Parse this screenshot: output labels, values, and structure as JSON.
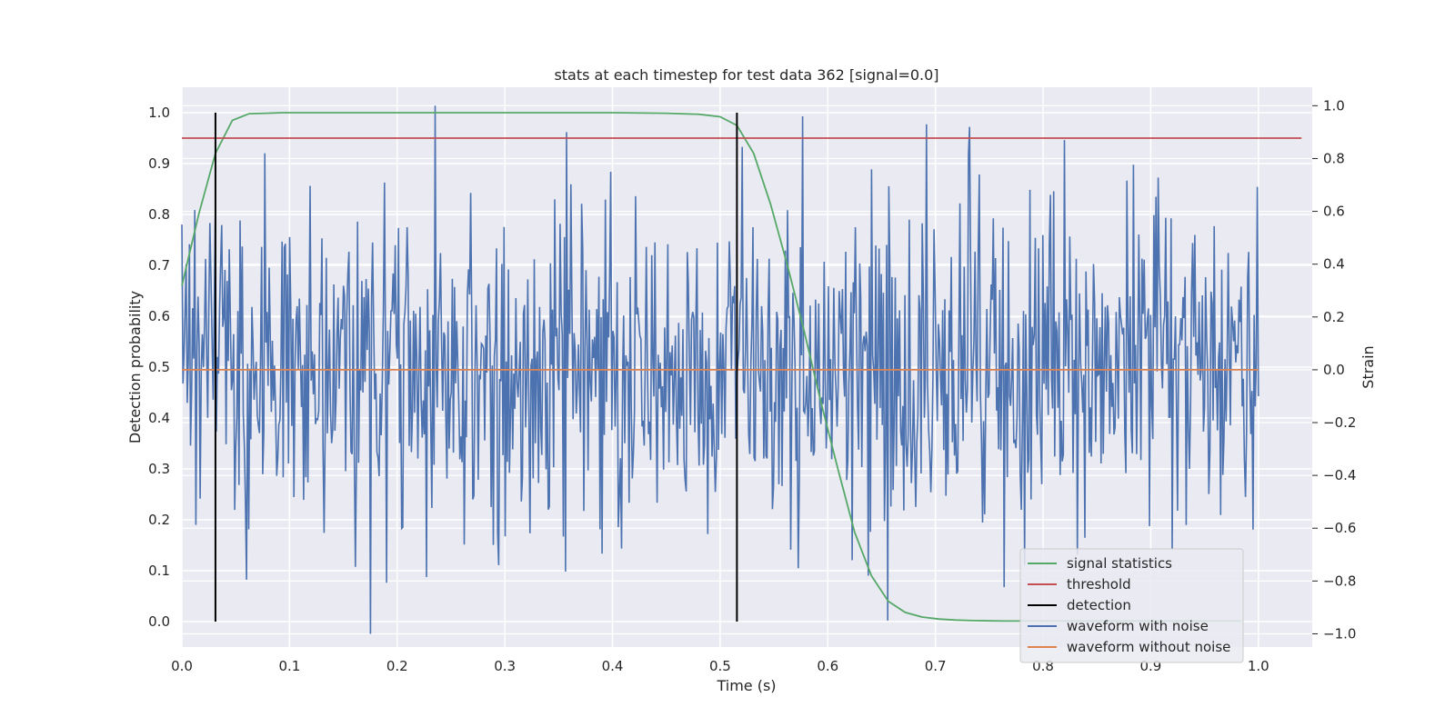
{
  "chart_data": {
    "type": "line",
    "title": "stats at each timestep for test data 362 [signal=0.0]",
    "xlabel": "Time (s)",
    "ylabel_left": "Detection probability",
    "ylabel_right": "Strain",
    "xlim": [
      0.0,
      1.05
    ],
    "ylim_left": [
      -0.05,
      1.05
    ],
    "ylim_right": [
      -1.05,
      1.07
    ],
    "x_ticks": [
      "0.0",
      "0.1",
      "0.2",
      "0.3",
      "0.4",
      "0.5",
      "0.6",
      "0.7",
      "0.8",
      "0.9",
      "1.0"
    ],
    "x_tick_values": [
      0.0,
      0.1,
      0.2,
      0.3,
      0.4,
      0.5,
      0.6,
      0.7,
      0.8,
      0.9,
      1.0
    ],
    "y_ticks_left": [
      "0.0",
      "0.1",
      "0.2",
      "0.3",
      "0.4",
      "0.5",
      "0.6",
      "0.7",
      "0.8",
      "0.9",
      "1.0"
    ],
    "y_tick_values_left": [
      0.0,
      0.1,
      0.2,
      0.3,
      0.4,
      0.5,
      0.6,
      0.7,
      0.8,
      0.9,
      1.0
    ],
    "y_ticks_right": [
      "−1.0",
      "−0.8",
      "−0.6",
      "−0.4",
      "−0.2",
      "0.0",
      "0.2",
      "0.4",
      "0.6",
      "0.8",
      "1.0"
    ],
    "y_tick_values_right": [
      -1.0,
      -0.8,
      -0.6,
      -0.4,
      -0.2,
      0.0,
      0.2,
      0.4,
      0.6,
      0.8,
      1.0
    ],
    "grid": true,
    "background": "#eaeaf2",
    "legend_placement": "lower-right",
    "legend": [
      {
        "label": "signal statistics",
        "color": "#55a868"
      },
      {
        "label": "threshold",
        "color": "#c44e52"
      },
      {
        "label": "detection",
        "color": "#000000"
      },
      {
        "label": "waveform with noise",
        "color": "#4c72b0"
      },
      {
        "label": "waveform without noise",
        "color": "#dd8452"
      }
    ],
    "series": [
      {
        "name": "signal statistics",
        "axis": "left",
        "color": "#55a868",
        "x": [
          0.0,
          0.0156,
          0.0312,
          0.0469,
          0.0625,
          0.0781,
          0.0938,
          0.1094,
          0.125,
          0.2,
          0.3,
          0.4,
          0.45,
          0.48,
          0.5,
          0.5156,
          0.5312,
          0.5469,
          0.5625,
          0.5781,
          0.5938,
          0.6094,
          0.625,
          0.6406,
          0.6562,
          0.6719,
          0.6875,
          0.7031,
          0.7188,
          0.7344,
          0.75,
          0.7656,
          0.7812,
          0.8,
          0.9,
          0.9844
        ],
        "y": [
          0.66,
          0.8,
          0.92,
          0.985,
          0.998,
          0.999,
          1.0,
          1.0,
          1.0,
          1.0,
          1.0,
          1.0,
          0.999,
          0.997,
          0.992,
          0.975,
          0.92,
          0.82,
          0.7,
          0.57,
          0.43,
          0.3,
          0.175,
          0.09,
          0.04,
          0.018,
          0.009,
          0.005,
          0.003,
          0.002,
          0.0015,
          0.001,
          0.001,
          0.001,
          0.001,
          0.001
        ]
      },
      {
        "name": "threshold",
        "axis": "left",
        "color": "#c44e52",
        "x": [
          0.0,
          1.04
        ],
        "y": [
          0.95,
          0.95
        ]
      },
      {
        "name": "waveform without noise",
        "axis": "right",
        "color": "#dd8452",
        "x": [
          0.0,
          1.0
        ],
        "y": [
          0.0,
          0.0
        ]
      }
    ],
    "detections": [
      {
        "x": 0.0312,
        "y": [
          0.0,
          1.0
        ]
      },
      {
        "x": 0.5156,
        "y": [
          0.0,
          1.0
        ]
      }
    ],
    "noisy_waveform": {
      "name": "waveform with noise",
      "axis": "right",
      "color": "#4c72b0",
      "x_start": 0.0,
      "x_end": 1.0,
      "peaks": [
        {
          "x": 0.0,
          "y": 0.55
        },
        {
          "x": 0.077,
          "y": 0.82
        },
        {
          "x": 0.175,
          "y": -1.0
        },
        {
          "x": 0.235,
          "y": 1.0
        },
        {
          "x": 0.294,
          "y": -0.74
        },
        {
          "x": 0.357,
          "y": 0.9
        },
        {
          "x": 0.577,
          "y": 0.96
        },
        {
          "x": 0.638,
          "y": -0.78
        },
        {
          "x": 0.732,
          "y": 0.92
        },
        {
          "x": 0.82,
          "y": 0.87
        },
        {
          "x": 0.965,
          "y": -0.55
        },
        {
          "x": 1.0,
          "y": -0.1
        }
      ]
    }
  }
}
